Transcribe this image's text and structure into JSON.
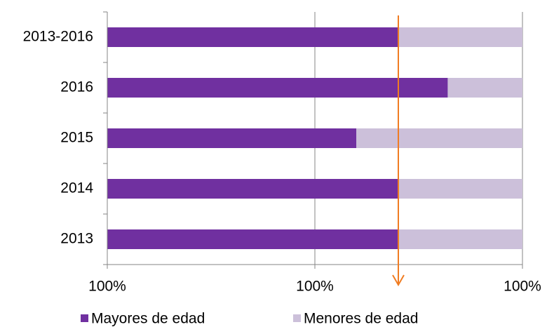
{
  "chart_data": {
    "type": "stacked-bar-horizontal",
    "categories": [
      "2013-2016",
      "2016",
      "2015",
      "2014",
      "2013"
    ],
    "series": [
      {
        "name": "Mayores de edad",
        "color": "#7030a0",
        "values": [
          70,
          82,
          60,
          70,
          70
        ]
      },
      {
        "name": "Menores de edad",
        "color": "#ccc0da",
        "values": [
          30,
          18,
          40,
          30,
          30
        ]
      }
    ],
    "xlim": [
      0,
      100
    ],
    "xticks": [
      {
        "value": 0,
        "label": "100%"
      },
      {
        "value": 50,
        "label": "100%"
      },
      {
        "value": 100,
        "label": "100%"
      }
    ],
    "grid": true,
    "legend": "bottom"
  }
}
